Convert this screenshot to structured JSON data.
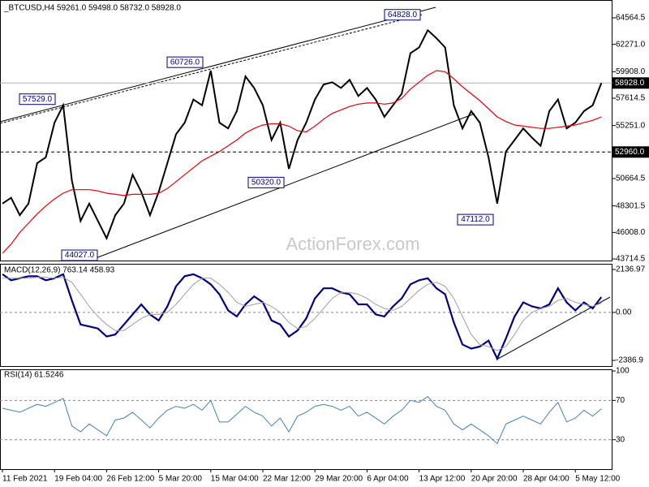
{
  "chart_data": [
    {
      "type": "line",
      "title": "_BTCUSD,H4  59261.0 59498.0 58732.0 58928.0",
      "series": [
        {
          "name": "Price",
          "color": "#000000",
          "values": [
            48500,
            49000,
            47500,
            48500,
            52000,
            52500,
            55500,
            57000,
            50500,
            47000,
            48500,
            47000,
            45500,
            47500,
            48500,
            51000,
            49500,
            47500,
            49500,
            52000,
            54500,
            55500,
            57500,
            57000,
            60000,
            55500,
            55000,
            56500,
            59500,
            58500,
            57000,
            54000,
            55500,
            51500,
            54000,
            55500,
            57500,
            58800,
            59000,
            58500,
            59200,
            57800,
            58500,
            57500,
            56000,
            57000,
            58000,
            61500,
            62000,
            63500,
            62800,
            62000,
            57000,
            55000,
            56500,
            55500,
            52500,
            48500,
            53000,
            54000,
            55000,
            54200,
            53500,
            56500,
            57500,
            55000,
            55500,
            56500,
            57000,
            58928
          ]
        },
        {
          "name": "MA",
          "color": "#e8000b",
          "values": [
            44200,
            45000,
            46000,
            46800,
            47600,
            48300,
            48900,
            49400,
            49700,
            49700,
            49700,
            49600,
            49400,
            49300,
            49200,
            49300,
            49300,
            49300,
            49400,
            49800,
            50400,
            51000,
            51600,
            52200,
            52600,
            53000,
            53500,
            54000,
            54600,
            55000,
            55300,
            55400,
            55400,
            55200,
            54800,
            54700,
            55200,
            55800,
            56300,
            56600,
            56900,
            57100,
            57200,
            57200,
            57100,
            57200,
            57600,
            58400,
            59000,
            59600,
            60000,
            59900,
            59300,
            58600,
            58000,
            57400,
            56700,
            56000,
            55600,
            55300,
            55200,
            55100,
            55000,
            55000,
            55100,
            55200,
            55300,
            55500,
            55700,
            56000
          ]
        }
      ],
      "ylim": [
        43504,
        66108
      ],
      "yticks": [
        64564.5,
        {
          "value": 62271,
          "label": "62271.0"
        },
        {
          "value": 59908,
          "label": "59908.0"
        },
        57614.5,
        {
          "value": 55251,
          "label": "55251.0"
        },
        50664.5,
        48301.5,
        {
          "value": 46008,
          "label": "46008.0"
        },
        43714.5
      ],
      "support_level": {
        "value": 52960,
        "label": "52960.0"
      },
      "current_price": {
        "value": 58928,
        "label": "58928.0"
      },
      "annotations": [
        {
          "value": 64828,
          "label": "64828.0"
        },
        {
          "value": 60726,
          "label": "60726.0"
        },
        {
          "value": 57529,
          "label": "57529.0"
        },
        {
          "value": 50320,
          "label": "50320.0"
        },
        {
          "value": 44027,
          "label": "44027.0"
        },
        {
          "value": 47112,
          "label": "47112.0"
        }
      ],
      "watermark": "ActionForex.com"
    },
    {
      "type": "line",
      "title": "MACD(12,26,9) 763.14 458.93",
      "series": [
        {
          "name": "MACD",
          "color": "#000080",
          "values": [
            1900,
            1600,
            1700,
            1800,
            1800,
            1600,
            1700,
            1900,
            600,
            -600,
            -700,
            -800,
            -1200,
            -1100,
            -600,
            -100,
            400,
            -100,
            -400,
            300,
            1300,
            1800,
            1900,
            1700,
            1400,
            900,
            100,
            -200,
            400,
            800,
            500,
            -400,
            -600,
            -1200,
            -900,
            -300,
            700,
            1200,
            1200,
            1000,
            900,
            400,
            400,
            -100,
            -200,
            300,
            700,
            1400,
            1600,
            1700,
            1200,
            900,
            -500,
            -1600,
            -1800,
            -1700,
            -1400,
            -2300,
            -1300,
            -200,
            500,
            300,
            200,
            400,
            1200,
            500,
            100,
            500,
            200,
            763.14
          ]
        },
        {
          "name": "Signal",
          "color": "#a0a0a0",
          "values": [
            1700,
            1700,
            1700,
            1700,
            1750,
            1750,
            1700,
            1750,
            1500,
            900,
            300,
            -200,
            -600,
            -900,
            -900,
            -600,
            -300,
            -100,
            -100,
            0,
            400,
            900,
            1400,
            1700,
            1700,
            1400,
            1000,
            500,
            300,
            400,
            500,
            300,
            0,
            -500,
            -800,
            -700,
            -300,
            200,
            700,
            1000,
            1000,
            900,
            700,
            400,
            200,
            100,
            300,
            700,
            1100,
            1400,
            1500,
            1300,
            700,
            -200,
            -1100,
            -1600,
            -1700,
            -1900,
            -1700,
            -1100,
            -400,
            0,
            200,
            300,
            600,
            700,
            500,
            400,
            300,
            458.93
          ]
        }
      ],
      "ylim": [
        -2710,
        2420
      ],
      "yticks": [
        2136.97,
        {
          "value": 0,
          "label": "0.00"
        },
        -2386.9
      ],
      "levels": [
        0
      ]
    },
    {
      "type": "line",
      "title": "RSI(14) 61.5246",
      "series": [
        {
          "name": "RSI",
          "color": "#4682b4",
          "values": [
            62,
            60,
            58,
            62,
            66,
            64,
            68,
            72,
            44,
            38,
            46,
            40,
            34,
            50,
            52,
            58,
            50,
            42,
            52,
            60,
            64,
            62,
            66,
            60,
            70,
            48,
            48,
            56,
            64,
            58,
            54,
            44,
            52,
            38,
            54,
            58,
            64,
            66,
            64,
            60,
            64,
            54,
            58,
            52,
            46,
            54,
            60,
            70,
            68,
            74,
            64,
            60,
            46,
            40,
            46,
            40,
            34,
            26,
            46,
            50,
            54,
            50,
            46,
            58,
            68,
            48,
            52,
            60,
            54,
            61.5246
          ]
        }
      ],
      "ylim": [
        0,
        101.7
      ],
      "yticks": [
        100,
        70,
        30
      ],
      "levels": [
        70,
        30
      ],
      "categories": [
        "11 Feb 2021",
        null,
        null,
        null,
        null,
        null,
        "19 Feb 04:00",
        null,
        null,
        null,
        null,
        null,
        "26 Feb 12:00",
        null,
        null,
        null,
        null,
        null,
        "5 Mar 20:00",
        null,
        null,
        null,
        null,
        null,
        "15 Mar 04:00",
        null,
        null,
        null,
        null,
        null,
        "22 Mar 12:00",
        null,
        null,
        null,
        null,
        null,
        "29 Mar 20:00",
        null,
        null,
        null,
        null,
        null,
        "6 Apr 04:00",
        null,
        null,
        null,
        null,
        null,
        "13 Apr 12:00",
        null,
        null,
        null,
        null,
        null,
        "20 Apr 20:00",
        null,
        null,
        null,
        null,
        null,
        "28 Apr 04:00",
        null,
        null,
        null,
        null,
        null,
        "5 May 12:00",
        null,
        null,
        null
      ]
    }
  ]
}
